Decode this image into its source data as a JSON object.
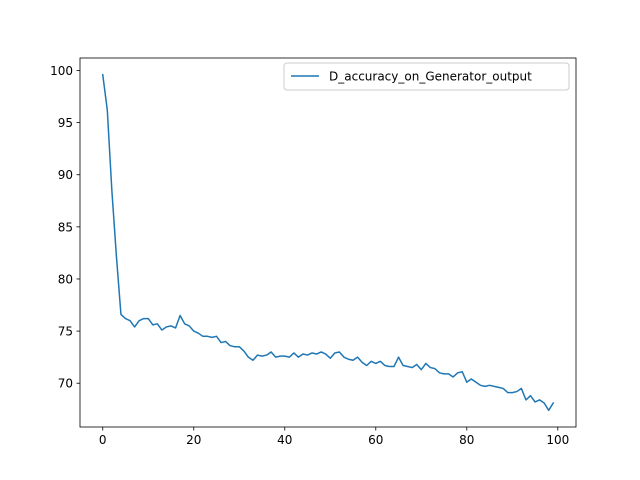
{
  "chart_data": {
    "type": "line",
    "title": "",
    "xlabel": "",
    "ylabel": "",
    "xlim": [
      -5,
      104
    ],
    "ylim": [
      65.8,
      101.2
    ],
    "x_ticks": [
      0,
      20,
      40,
      60,
      80,
      100
    ],
    "x_tick_labels": [
      "0",
      "20",
      "40",
      "60",
      "80",
      "100"
    ],
    "y_ticks": [
      70,
      75,
      80,
      85,
      90,
      95,
      100
    ],
    "y_tick_labels": [
      "70",
      "75",
      "80",
      "85",
      "90",
      "95",
      "100"
    ],
    "grid": false,
    "legend": "top-right",
    "series": [
      {
        "name": "D_accuracy_on_Generator_output",
        "color": "#1f77b4",
        "x": [
          0,
          1,
          2,
          3,
          4,
          5,
          6,
          7,
          8,
          9,
          10,
          11,
          12,
          13,
          14,
          15,
          16,
          17,
          18,
          19,
          20,
          21,
          22,
          23,
          24,
          25,
          26,
          27,
          28,
          29,
          30,
          31,
          32,
          33,
          34,
          35,
          36,
          37,
          38,
          39,
          40,
          41,
          42,
          43,
          44,
          45,
          46,
          47,
          48,
          49,
          50,
          51,
          52,
          53,
          54,
          55,
          56,
          57,
          58,
          59,
          60,
          61,
          62,
          63,
          64,
          65,
          66,
          67,
          68,
          69,
          70,
          71,
          72,
          73,
          74,
          75,
          76,
          77,
          78,
          79,
          80,
          81,
          82,
          83,
          84,
          85,
          86,
          87,
          88,
          89,
          90,
          91,
          92,
          93,
          94,
          95,
          96,
          97,
          98,
          99
        ],
        "values": [
          99.6,
          96.2,
          88.5,
          82.2,
          76.6,
          76.2,
          76.0,
          75.4,
          76.0,
          76.2,
          76.2,
          75.6,
          75.7,
          75.1,
          75.4,
          75.5,
          75.3,
          76.5,
          75.7,
          75.5,
          75.0,
          74.8,
          74.5,
          74.5,
          74.4,
          74.5,
          73.9,
          74.0,
          73.6,
          73.5,
          73.5,
          73.1,
          72.5,
          72.2,
          72.7,
          72.6,
          72.7,
          73.0,
          72.5,
          72.6,
          72.6,
          72.5,
          72.9,
          72.5,
          72.8,
          72.7,
          72.9,
          72.8,
          73.0,
          72.8,
          72.4,
          72.9,
          73.0,
          72.5,
          72.3,
          72.2,
          72.5,
          72.0,
          71.7,
          72.1,
          71.9,
          72.1,
          71.7,
          71.6,
          71.6,
          72.5,
          71.7,
          71.6,
          71.5,
          71.8,
          71.3,
          71.9,
          71.5,
          71.4,
          71.0,
          70.9,
          70.9,
          70.6,
          71.0,
          71.1,
          70.1,
          70.4,
          70.1,
          69.8,
          69.7,
          69.8,
          69.7,
          69.6,
          69.5,
          69.1,
          69.1,
          69.2,
          69.5,
          68.4,
          68.8,
          68.2,
          68.4,
          68.1,
          67.4,
          68.1
        ]
      }
    ]
  }
}
